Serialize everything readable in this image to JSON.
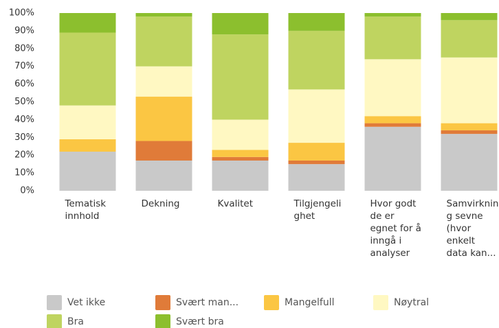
{
  "chart_data": {
    "type": "stacked_bar",
    "categories": [
      "Tematisk innhold",
      "Dekning",
      "Kvalitet",
      "Tilgjengeli ghet",
      "Hvor godt de er egnet for å inngå i analyser",
      "Samvirkning sevne (hvor enkelt data kan..."
    ],
    "series": [
      {
        "name": "Vet ikke",
        "color": "#c9c9c9",
        "values": [
          22,
          17,
          17,
          15,
          36,
          32
        ]
      },
      {
        "name": "Svært man...",
        "color": "#e07b39",
        "values": [
          0,
          11,
          2,
          2,
          2,
          2
        ]
      },
      {
        "name": "Mangelfull",
        "color": "#fbc643",
        "values": [
          7,
          25,
          4,
          10,
          4,
          4
        ]
      },
      {
        "name": "Nøytral",
        "color": "#fff8c2",
        "values": [
          19,
          17,
          17,
          30,
          32,
          37
        ]
      },
      {
        "name": "Bra",
        "color": "#bfd460",
        "values": [
          41,
          28,
          48,
          33,
          24,
          21
        ]
      },
      {
        "name": "Svært bra",
        "color": "#8cbf2e",
        "values": [
          11,
          2,
          12,
          10,
          2,
          4
        ]
      }
    ],
    "ylim": [
      0,
      100
    ],
    "yticks": [
      {
        "value": 0,
        "label": "0%"
      },
      {
        "value": 10,
        "label": "10%"
      },
      {
        "value": 20,
        "label": "20%"
      },
      {
        "value": 30,
        "label": "30%"
      },
      {
        "value": 40,
        "label": "40%"
      },
      {
        "value": 50,
        "label": "50%"
      },
      {
        "value": 60,
        "label": "60%"
      },
      {
        "value": 70,
        "label": "70%"
      },
      {
        "value": 80,
        "label": "80%"
      },
      {
        "value": 90,
        "label": "90%"
      },
      {
        "value": 100,
        "label": "100%"
      }
    ],
    "grid": false
  }
}
